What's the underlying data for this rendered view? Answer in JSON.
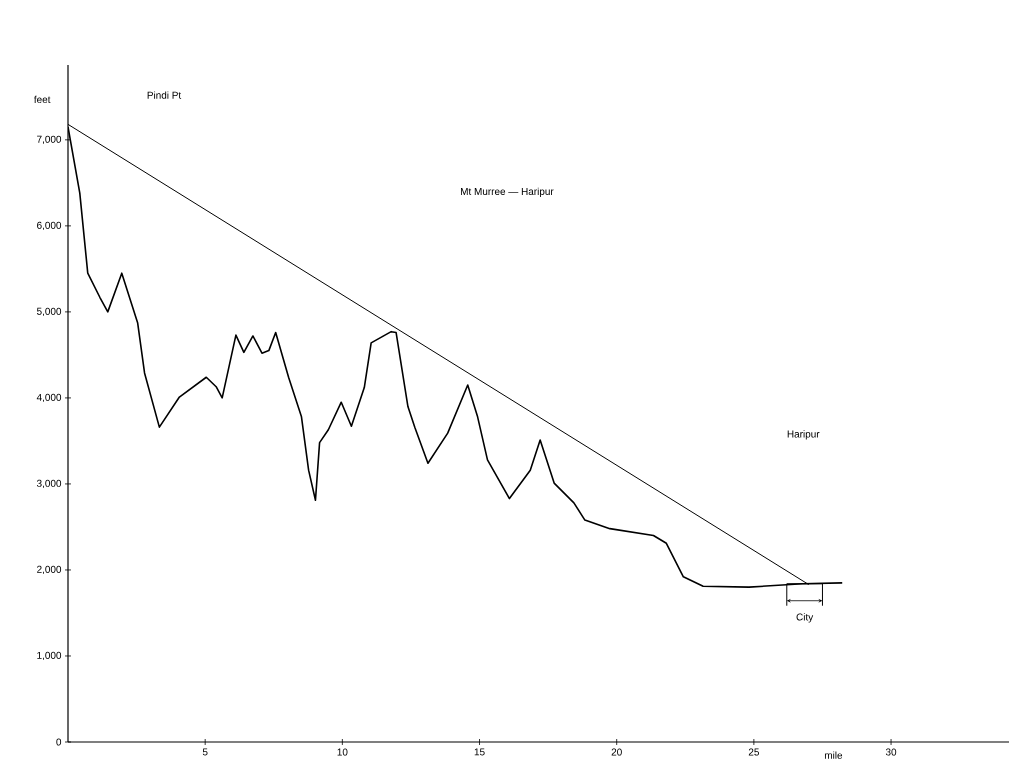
{
  "chart_data": {
    "type": "line",
    "title": "Mt  Murree — Haripur",
    "xlabel": "mile",
    "ylabel": "feet",
    "annotations": [
      "Pindi Pt",
      "Haripur",
      {
        "text": "City",
        "x": 26.85,
        "y": 1840
      }
    ],
    "xlim": [
      0,
      34.3
    ],
    "ylim": [
      0,
      7870
    ],
    "xticks": [
      5,
      10,
      15,
      20,
      25,
      30
    ],
    "yticks": [
      0,
      {
        "value": 1000,
        "label": "1,000"
      },
      {
        "value": 2000,
        "label": "2,000"
      },
      {
        "value": 3000,
        "label": "3,000"
      },
      {
        "value": 4000,
        "label": "4,000"
      },
      {
        "value": 5000,
        "label": "5,000"
      },
      {
        "value": 6000,
        "label": "6,000"
      },
      {
        "value": 7000,
        "label": "7,000"
      }
    ],
    "grid": false,
    "marker": "none",
    "line_style": "solid",
    "series": [
      {
        "color": "#000000",
        "x": [
          0,
          0.43,
          0.72,
          1.16,
          1.45,
          1.96,
          2.54,
          2.79,
          3.33,
          4.06,
          5.04,
          5.4,
          5.62,
          6.12,
          6.41,
          6.74,
          7.07,
          7.32,
          7.57,
          8.04,
          8.51,
          8.77,
          9.02,
          9.17,
          9.49,
          9.96,
          10.33,
          10.8,
          11.05,
          11.78,
          11.96,
          12.39,
          12.64,
          13.12,
          13.84,
          14.57,
          14.93,
          15.29,
          16.09,
          16.85,
          17.21,
          17.72,
          18.44,
          18.84,
          19.75,
          21.34,
          21.81,
          22.43,
          23.15,
          24.82,
          26.78,
          28.22
        ],
        "values": [
          7150,
          6380,
          5450,
          5170,
          5000,
          5450,
          4870,
          4290,
          3660,
          4010,
          4240,
          4130,
          4000,
          4730,
          4530,
          4720,
          4520,
          4550,
          4760,
          4240,
          3780,
          3160,
          2810,
          3480,
          3630,
          3950,
          3670,
          4120,
          4640,
          4770,
          4760,
          3900,
          3660,
          3240,
          3590,
          4150,
          3780,
          3280,
          2830,
          3160,
          3510,
          3010,
          2780,
          2580,
          2480,
          2400,
          2310,
          1920,
          1810,
          1800,
          1840,
          1850
        ]
      },
      {
        "color": "#000000",
        "x": [
          0,
          27.0
        ],
        "values": [
          7180,
          1830
        ]
      }
    ]
  }
}
